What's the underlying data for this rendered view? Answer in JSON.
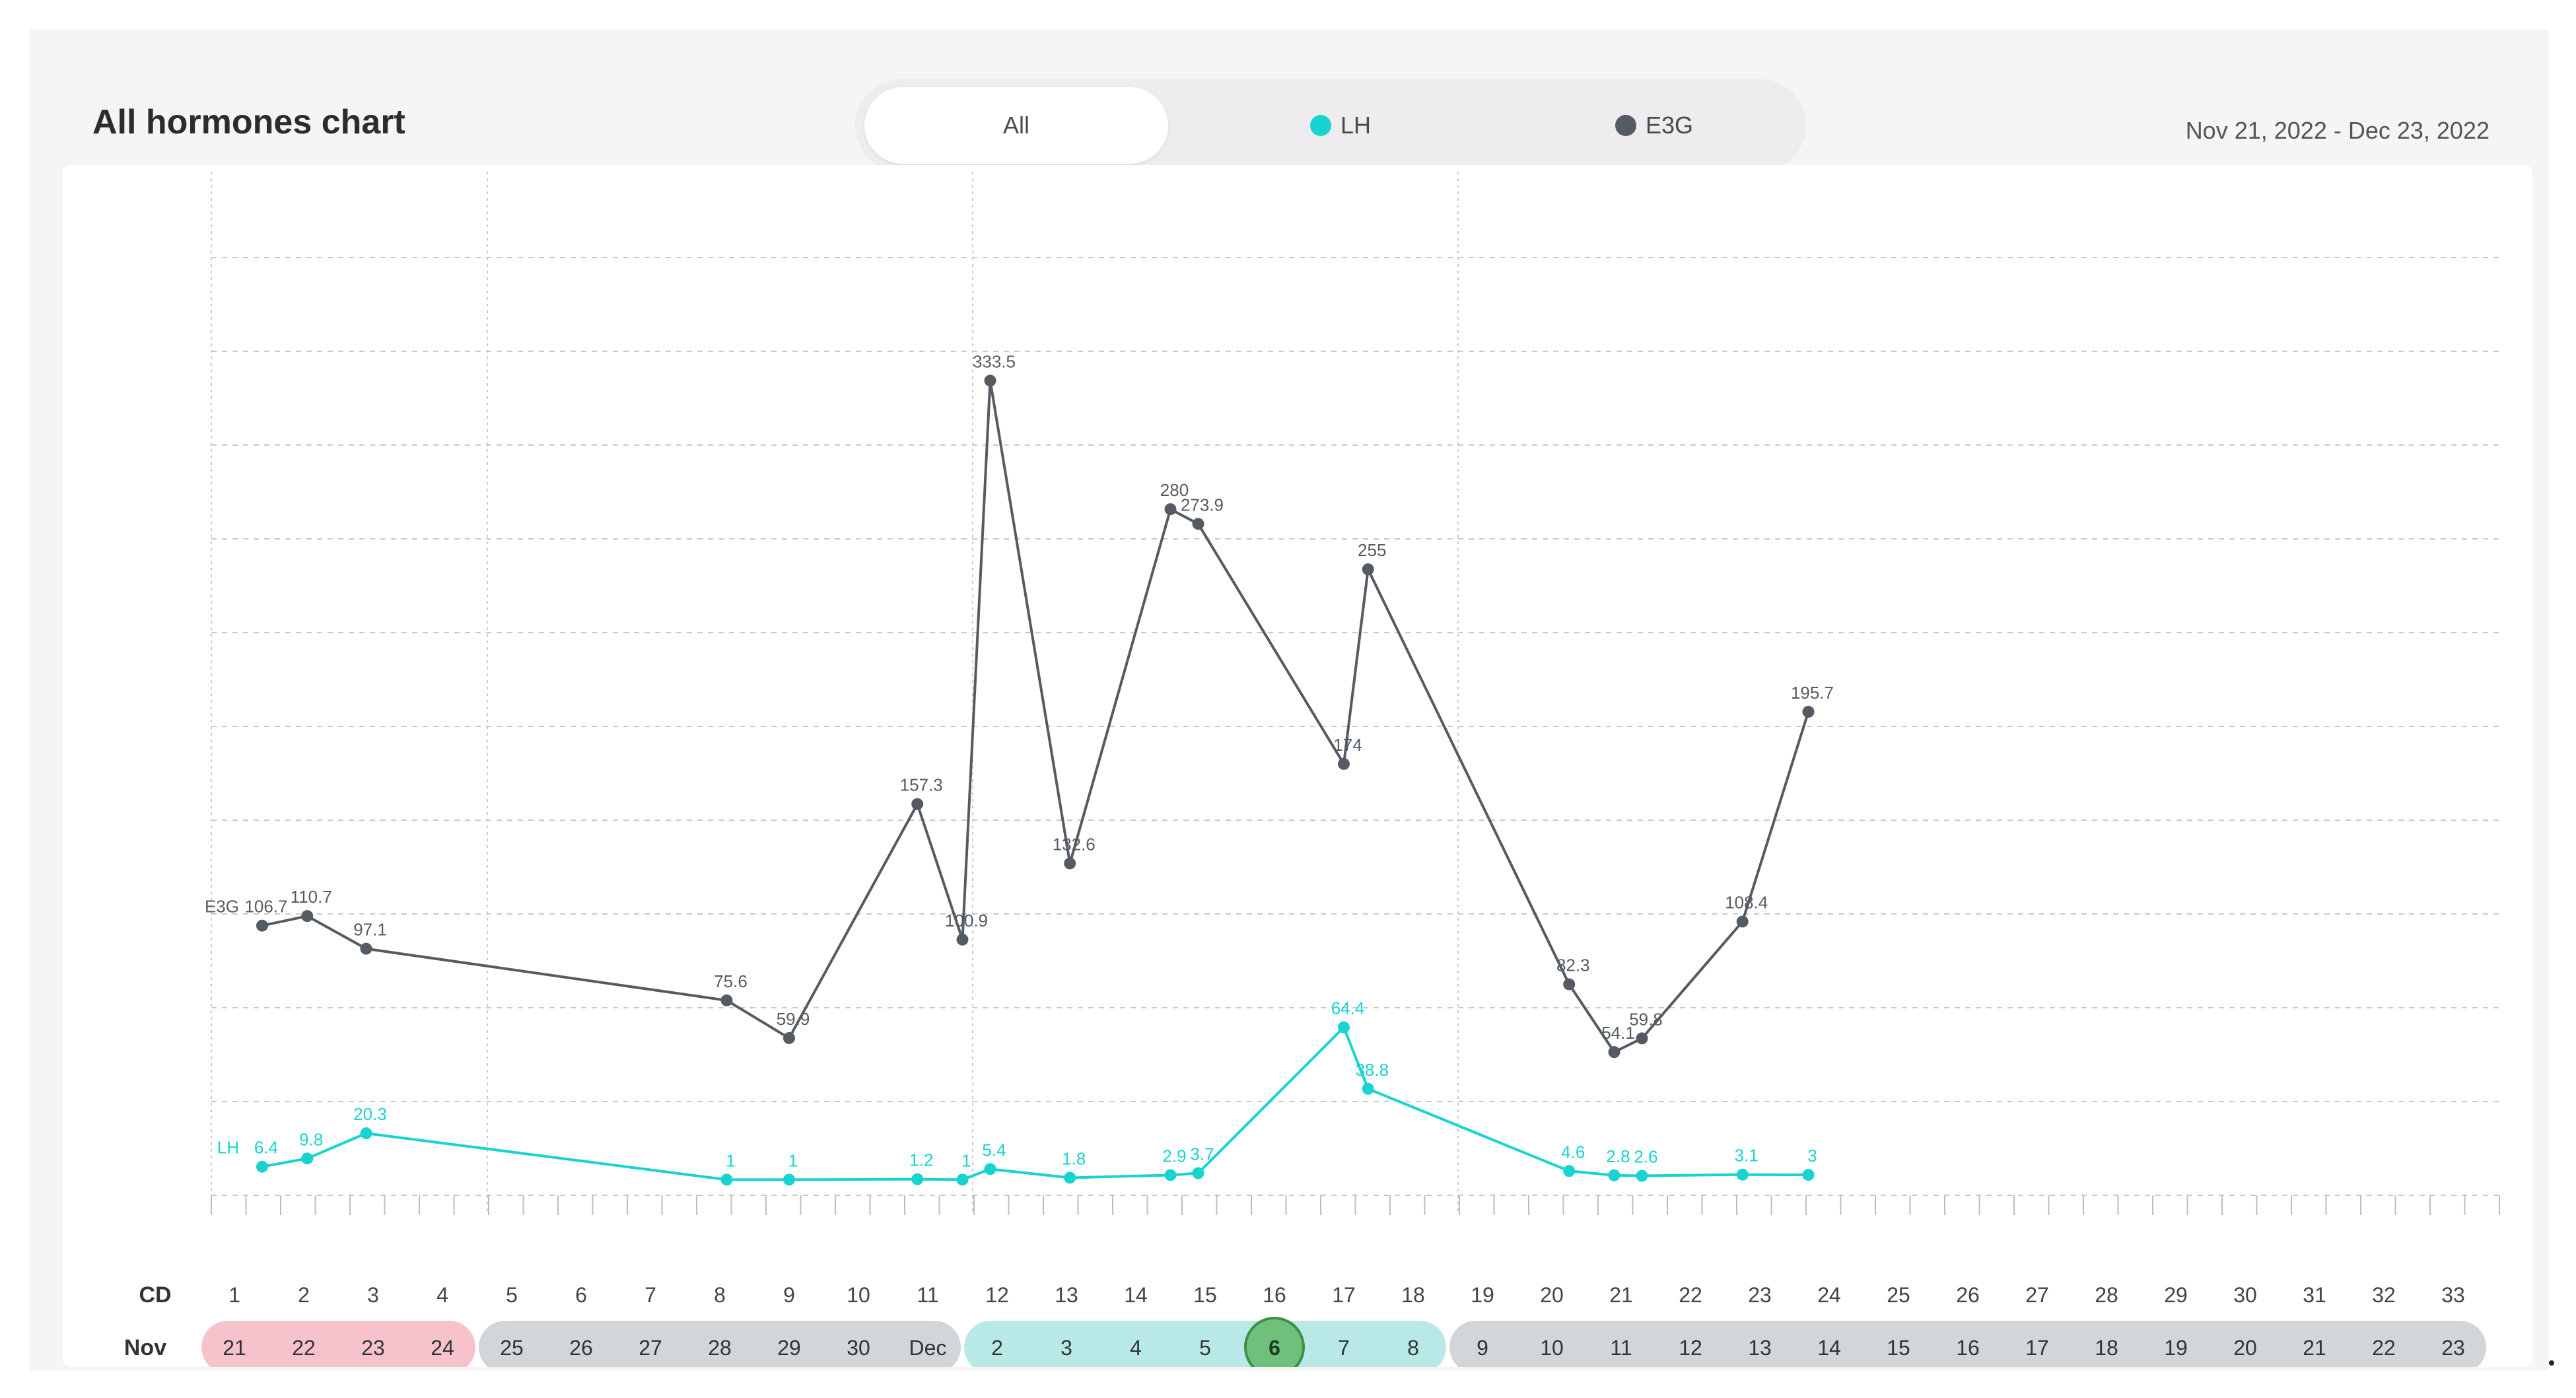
{
  "header": {
    "title": "All hormones chart",
    "date_range": "Nov 21, 2022 - Dec 23, 2022"
  },
  "tabs": [
    {
      "label": "All",
      "selected": true
    },
    {
      "label": "LH",
      "color": "#19d3d0"
    },
    {
      "label": "E3G",
      "color": "#555b62"
    }
  ],
  "chart_data": {
    "type": "line",
    "title": "All hormones chart",
    "row_labels": {
      "cd": "CD",
      "month": "Nov"
    },
    "cycle_days": [
      "1",
      "2",
      "3",
      "4",
      "5",
      "6",
      "7",
      "8",
      "9",
      "10",
      "11",
      "12",
      "13",
      "14",
      "15",
      "16",
      "17",
      "18",
      "19",
      "20",
      "21",
      "22",
      "23",
      "24",
      "25",
      "26",
      "27",
      "28",
      "29",
      "30",
      "31",
      "32",
      "33"
    ],
    "dates": [
      "21",
      "22",
      "23",
      "24",
      "25",
      "26",
      "27",
      "28",
      "29",
      "30",
      "Dec",
      "2",
      "3",
      "4",
      "5",
      "6",
      "7",
      "8",
      "9",
      "10",
      "11",
      "12",
      "13",
      "14",
      "15",
      "16",
      "17",
      "18",
      "19",
      "20",
      "21",
      "22",
      "23"
    ],
    "selected_day": 16,
    "phases": [
      {
        "start": 1,
        "end": 4,
        "color": "#f6c3cd"
      },
      {
        "start": 5,
        "end": 11,
        "color": "#d2d6da"
      },
      {
        "start": 12,
        "end": 18,
        "color": "#b9e9e7"
      },
      {
        "start": 19,
        "end": 33,
        "color": "#d2d6da"
      }
    ],
    "ylim": [
      0,
      360
    ],
    "grid": true,
    "series": [
      {
        "name": "E3G",
        "color": "#555b62",
        "points": [
          {
            "x": 1.4,
            "y": 106.7,
            "label": "106.7"
          },
          {
            "x": 2.05,
            "y": 110.7,
            "label": "110.7"
          },
          {
            "x": 2.9,
            "y": 97.1,
            "label": "97.1"
          },
          {
            "x": 8.1,
            "y": 75.6,
            "label": "75.6"
          },
          {
            "x": 9.0,
            "y": 59.9,
            "label": "59.9"
          },
          {
            "x": 10.85,
            "y": 157.3,
            "label": "157.3"
          },
          {
            "x": 11.5,
            "y": 100.9,
            "label": "100.9"
          },
          {
            "x": 11.9,
            "y": 333.5,
            "label": "333.5"
          },
          {
            "x": 13.05,
            "y": 132.6,
            "label": "132.6"
          },
          {
            "x": 14.5,
            "y": 280,
            "label": "280"
          },
          {
            "x": 14.9,
            "y": 273.9,
            "label": "273.9"
          },
          {
            "x": 17.0,
            "y": 174,
            "label": "174"
          },
          {
            "x": 17.35,
            "y": 255,
            "label": "255"
          },
          {
            "x": 20.25,
            "y": 82.3,
            "label": "82.3"
          },
          {
            "x": 20.9,
            "y": 54.1,
            "label": "54.1"
          },
          {
            "x": 21.3,
            "y": 59.8,
            "label": "59.8"
          },
          {
            "x": 22.75,
            "y": 108.4,
            "label": "108.4"
          },
          {
            "x": 23.7,
            "y": 195.7,
            "label": "195.7"
          }
        ]
      },
      {
        "name": "LH",
        "color": "#19d3d0",
        "points": [
          {
            "x": 1.4,
            "y": 6.4,
            "label": "6.4"
          },
          {
            "x": 2.05,
            "y": 9.8,
            "label": "9.8"
          },
          {
            "x": 2.9,
            "y": 20.3,
            "label": "20.3"
          },
          {
            "x": 8.1,
            "y": 1,
            "label": "1"
          },
          {
            "x": 9.0,
            "y": 1,
            "label": "1"
          },
          {
            "x": 10.85,
            "y": 1.2,
            "label": "1.2"
          },
          {
            "x": 11.5,
            "y": 1,
            "label": "1"
          },
          {
            "x": 11.9,
            "y": 5.4,
            "label": "5.4"
          },
          {
            "x": 13.05,
            "y": 1.8,
            "label": "1.8"
          },
          {
            "x": 14.5,
            "y": 2.9,
            "label": "2.9"
          },
          {
            "x": 14.9,
            "y": 3.7,
            "label": "3.7"
          },
          {
            "x": 17.0,
            "y": 64.4,
            "label": "64.4"
          },
          {
            "x": 17.35,
            "y": 38.8,
            "label": "38.8"
          },
          {
            "x": 20.25,
            "y": 4.6,
            "label": "4.6"
          },
          {
            "x": 20.9,
            "y": 2.8,
            "label": "2.8"
          },
          {
            "x": 21.3,
            "y": 2.6,
            "label": "2.6"
          },
          {
            "x": 22.75,
            "y": 3.1,
            "label": "3.1"
          },
          {
            "x": 23.7,
            "y": 3,
            "label": "3"
          }
        ]
      }
    ]
  }
}
